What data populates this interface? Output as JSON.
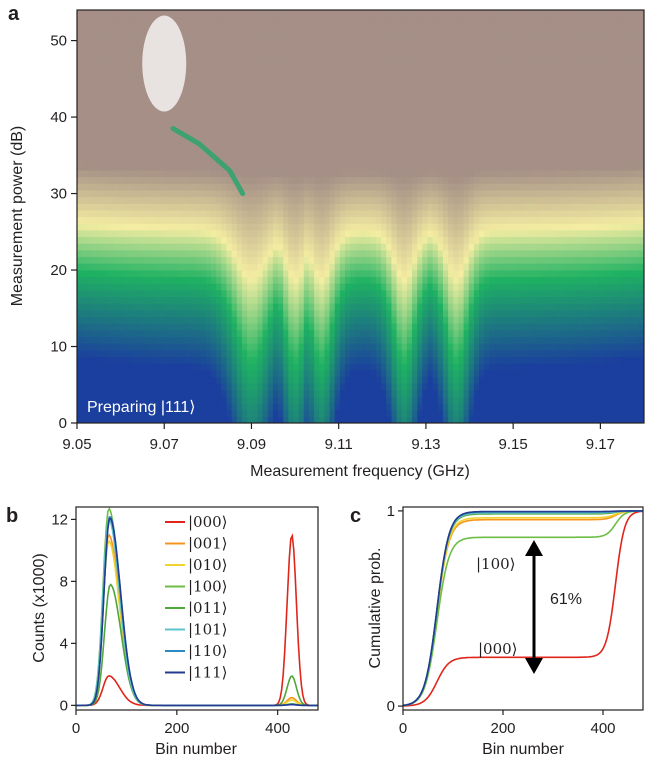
{
  "colors": {
    "s000": "#e0261b",
    "s001": "#f7941d",
    "s010": "#f2d22c",
    "s100": "#6cbe45",
    "s011": "#4fa63a",
    "s101": "#61c3c9",
    "s110": "#2f87c3",
    "s111": "#243b8f",
    "cmap_low": "#1b3f9e",
    "cmap_mid": "#1fb262",
    "cmap_yellow": "#f4eda2",
    "cmap_high": "#a58f86"
  },
  "chart_data": [
    {
      "type": "heatmap",
      "panel": "a",
      "annotation": "Preparing |111⟩",
      "xlabel": "Measurement frequency (GHz)",
      "ylabel": "Measurement power (dB)",
      "xlim": [
        9.05,
        9.18
      ],
      "ylim": [
        0,
        54
      ],
      "xticks": [
        "9.05",
        "9.07",
        "9.09",
        "9.11",
        "9.13",
        "9.15",
        "9.17"
      ],
      "yticks": [
        "0",
        "10",
        "20",
        "30",
        "40",
        "50"
      ],
      "xtick_values": [
        9.05,
        9.07,
        9.09,
        9.11,
        9.13,
        9.15,
        9.17
      ],
      "ytick_values": [
        0,
        10,
        20,
        30,
        40,
        50
      ],
      "colormap": "blue-green-yellow-brown",
      "features": {
        "transition_power_dB": 26,
        "dip_centers_GHz": [
          9.09,
          9.1,
          9.106,
          9.125,
          9.137
        ],
        "bright_spot": {
          "f_GHz": 9.07,
          "power_dB": 40
        },
        "branch_curve": [
          [
            9.072,
            38.5
          ],
          [
            9.078,
            36.5
          ],
          [
            9.085,
            33
          ],
          [
            9.088,
            30
          ]
        ]
      }
    },
    {
      "type": "line",
      "panel": "b",
      "xlabel": "Bin number",
      "ylabel": "Counts (x1000)",
      "xlim": [
        0,
        480
      ],
      "ylim": [
        -0.3,
        12.8
      ],
      "xticks": [
        "0",
        "200",
        "400"
      ],
      "yticks": [
        "0",
        "4",
        "8",
        "12"
      ],
      "xtick_values": [
        0,
        200,
        400
      ],
      "ytick_values": [
        0,
        4,
        8,
        12
      ],
      "legend": [
        "|000⟩",
        "|001⟩",
        "|010⟩",
        "|100⟩",
        "|011⟩",
        "|101⟩",
        "|110⟩",
        "|111⟩"
      ],
      "series": [
        {
          "name": "|000⟩",
          "color_key": "s000",
          "peak1": {
            "x": 65,
            "height": 1.9
          },
          "peak2": {
            "x": 428,
            "height": 11.0
          }
        },
        {
          "name": "|001⟩",
          "color_key": "s001",
          "peak1": {
            "x": 65,
            "height": 11.0
          },
          "peak2": {
            "x": 428,
            "height": 0.5
          }
        },
        {
          "name": "|010⟩",
          "color_key": "s010",
          "peak1": {
            "x": 65,
            "height": 10.6
          },
          "peak2": {
            "x": 428,
            "height": 0.35
          }
        },
        {
          "name": "|100⟩",
          "color_key": "s100",
          "peak1": {
            "x": 65,
            "height": 12.7
          },
          "peak2": {
            "x": 428,
            "height": 0.1
          }
        },
        {
          "name": "|011⟩",
          "color_key": "s011",
          "peak1": {
            "x": 68,
            "height": 7.8
          },
          "peak2": {
            "x": 428,
            "height": 1.9
          }
        },
        {
          "name": "|101⟩",
          "color_key": "s101",
          "peak1": {
            "x": 65,
            "height": 12.0
          },
          "peak2": {
            "x": 428,
            "height": 0.05
          }
        },
        {
          "name": "|110⟩",
          "color_key": "s110",
          "peak1": {
            "x": 67,
            "height": 12.2
          },
          "peak2": {
            "x": 428,
            "height": 0.05
          }
        },
        {
          "name": "|111⟩",
          "color_key": "s111",
          "peak1": {
            "x": 67,
            "height": 12.1
          },
          "peak2": {
            "x": 428,
            "height": 0.05
          }
        }
      ]
    },
    {
      "type": "line",
      "panel": "c",
      "xlabel": "Bin number",
      "ylabel": "Cumulative prob.",
      "xlim": [
        0,
        480
      ],
      "ylim": [
        -0.02,
        1.02
      ],
      "xticks": [
        "0",
        "200",
        "400"
      ],
      "yticks": [
        "0",
        "1"
      ],
      "xtick_values": [
        0,
        200,
        400
      ],
      "ytick_values": [
        0,
        1
      ],
      "labels": [
        "|100⟩",
        "|000⟩"
      ],
      "annotation": "61%",
      "series": [
        {
          "name": "|000⟩",
          "color_key": "s000",
          "plateau": 0.25
        },
        {
          "name": "|001⟩",
          "color_key": "s001",
          "plateau": 0.955
        },
        {
          "name": "|010⟩",
          "color_key": "s010",
          "plateau": 0.965
        },
        {
          "name": "|100⟩",
          "color_key": "s100",
          "plateau": 0.865
        },
        {
          "name": "|011⟩",
          "color_key": "s011",
          "plateau": 0.985
        },
        {
          "name": "|101⟩",
          "color_key": "s101",
          "plateau": 0.99
        },
        {
          "name": "|110⟩",
          "color_key": "s110",
          "plateau": 0.995
        },
        {
          "name": "|111⟩",
          "color_key": "s111",
          "plateau": 0.997
        }
      ]
    }
  ]
}
